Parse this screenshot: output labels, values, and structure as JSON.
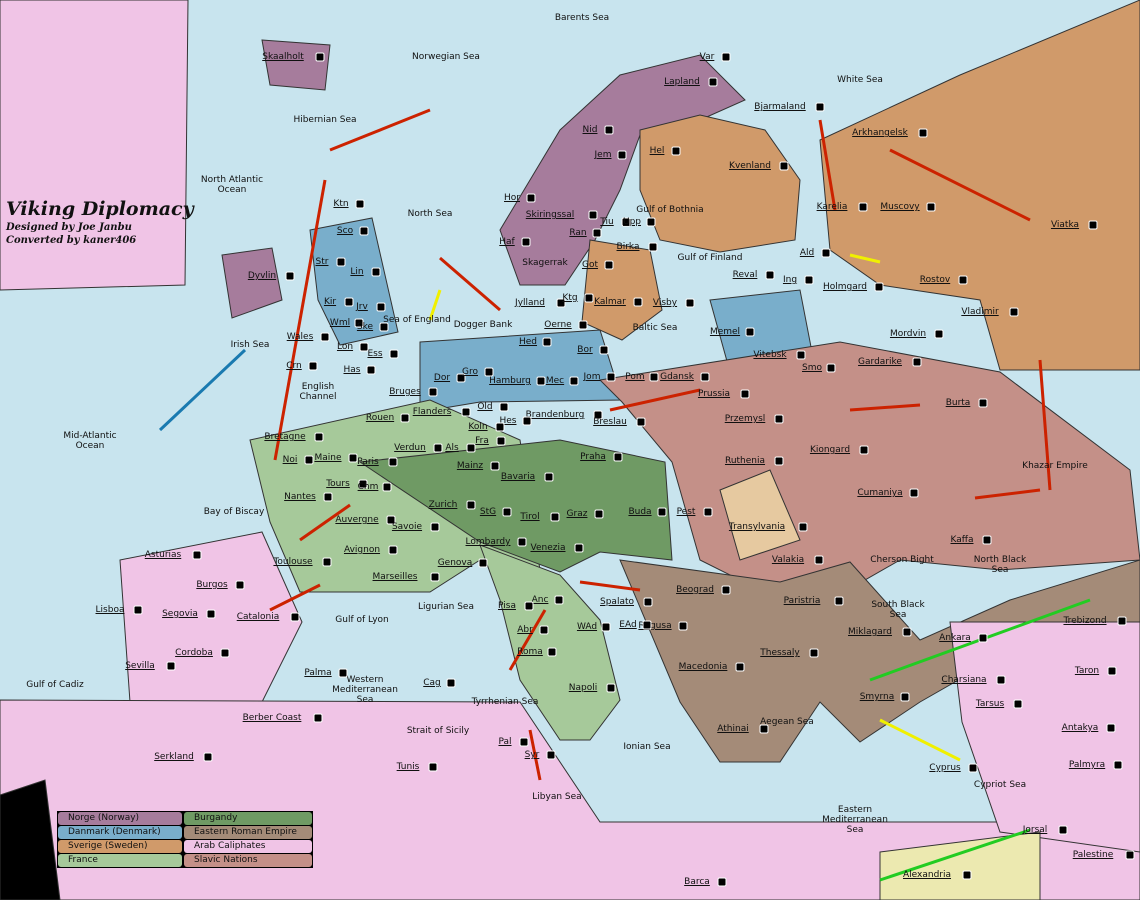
{
  "title": "Viking Diplomacy",
  "credits": [
    "Designed by Joe Janbu",
    "Converted by kaner406"
  ],
  "colors": {
    "sea": "#c8e4ee",
    "norge": "#a67c9c",
    "danmark": "#79aecb",
    "sverige": "#d09a6a",
    "france": "#a6c99a",
    "burgundy": "#6f9a64",
    "eastern_roman": "#a48b78",
    "arab": "#f0c4e6",
    "slavic": "#c49088",
    "neutral": "#e6c9a0",
    "order_move": "#cc2200",
    "order_support": "#f0f000",
    "order_convoy": "#22cc22"
  },
  "legend": [
    {
      "label": "Norge (Norway)",
      "color": "#a67c9c"
    },
    {
      "label": "Burgandy",
      "color": "#6f9a64"
    },
    {
      "label": "Danmark (Denmark)",
      "color": "#79aecb"
    },
    {
      "label": "Eastern Roman Empire",
      "color": "#a48b78"
    },
    {
      "label": "Sverige (Sweden)",
      "color": "#d09a6a"
    },
    {
      "label": "Arab Caliphates",
      "color": "#f0c4e6"
    },
    {
      "label": "France",
      "color": "#a6c99a"
    },
    {
      "label": "Slavic Nations",
      "color": "#c49088"
    }
  ],
  "seas": [
    "Barents Sea",
    "Norwegian Sea",
    "Hibernian Sea",
    "North Atlantic Ocean",
    "North Sea",
    "Sea of England",
    "Dogger Bank",
    "Skagerrak",
    "Gulf of Bothnia",
    "Gulf of Finland",
    "Baltic Sea",
    "Irish Sea",
    "English Channel",
    "Mid-Atlantic Ocean",
    "Bay of Biscay",
    "Gulf of Lyon",
    "Ligurian Sea",
    "Western Mediterranean Sea",
    "Tyrrhenian Sea",
    "Strait of Sicily",
    "Ionian Sea",
    "Aegean Sea",
    "Libyan Sea",
    "Eastern Mediterranean Sea",
    "Gulf of Cadiz",
    "Cherson Bight",
    "North Black Sea",
    "South Black Sea",
    "White Sea",
    "Khazar Empire",
    "Cypriot Sea"
  ],
  "territories": [
    "Skaalholt",
    "Lapland",
    "Var",
    "Nid",
    "Jem",
    "Hel",
    "Kvenland",
    "Bjarmaland",
    "Arkhangelsk",
    "Muscovy",
    "Viatka",
    "Karelia",
    "Hor",
    "Skiringssal",
    "Haf",
    "Tiu",
    "Upp",
    "Ran",
    "Got",
    "Birka",
    "Kalmar",
    "Visby",
    "Ald",
    "Reval",
    "Ing",
    "Holmgard",
    "Rostov",
    "Vladimir",
    "Mordvin",
    "Gardarike",
    "Smo",
    "Vitebsk",
    "Memel",
    "Prussia",
    "Przemysl",
    "Gdansk",
    "Pom",
    "Bor",
    "Jom",
    "Mec",
    "Hamburg",
    "Oerne",
    "Jylland",
    "Hed",
    "Ktg",
    "Sco",
    "Ktn",
    "Str",
    "Lin",
    "Jrv",
    "Kir",
    "Wml",
    "Ske",
    "Ess",
    "Lon",
    "Wales",
    "Dyvlin",
    "Crn",
    "Has",
    "Bruges",
    "Flanders",
    "Rouen",
    "Dor",
    "Gro",
    "Old",
    "Brandenburg",
    "Breslau",
    "Hes",
    "Koln",
    "Fra",
    "Verdun",
    "Als",
    "Mainz",
    "Bavaria",
    "Praha",
    "Paris",
    "Maine",
    "Bretagne",
    "Noi",
    "Nantes",
    "Tours",
    "Chm",
    "Auvergne",
    "Zurich",
    "StG",
    "Tirol",
    "Graz",
    "Buda",
    "Pest",
    "Ruthenia",
    "Kiongard",
    "Burta",
    "Cumaniya",
    "Transylvania",
    "Valakia",
    "Kaffa",
    "Trebizond",
    "Taron",
    "Charsiana",
    "Tarsus",
    "Antakya",
    "Palmyra",
    "Cyprus",
    "Jorsal",
    "Palestine",
    "Alexandria",
    "Barca",
    "Ankara",
    "Miklagard",
    "Smyrna",
    "Thessaly",
    "Paristria",
    "Macedonia",
    "Beograd",
    "Ragusa",
    "Spalato",
    "EAd",
    "WAd",
    "Anc",
    "Abr",
    "Roma",
    "Pisa",
    "Napoli",
    "Venezia",
    "Lombardy",
    "Genova",
    "Savoie",
    "Avignon",
    "Marseilles",
    "Toulouse",
    "Catalonia",
    "Burgos",
    "Asturias",
    "Segovia",
    "Lisboa",
    "Cordoba",
    "Sevilla",
    "Palma",
    "Cag",
    "Berber Coast",
    "Tunis",
    "Pal",
    "Syr",
    "Athinai",
    "Serkland"
  ]
}
